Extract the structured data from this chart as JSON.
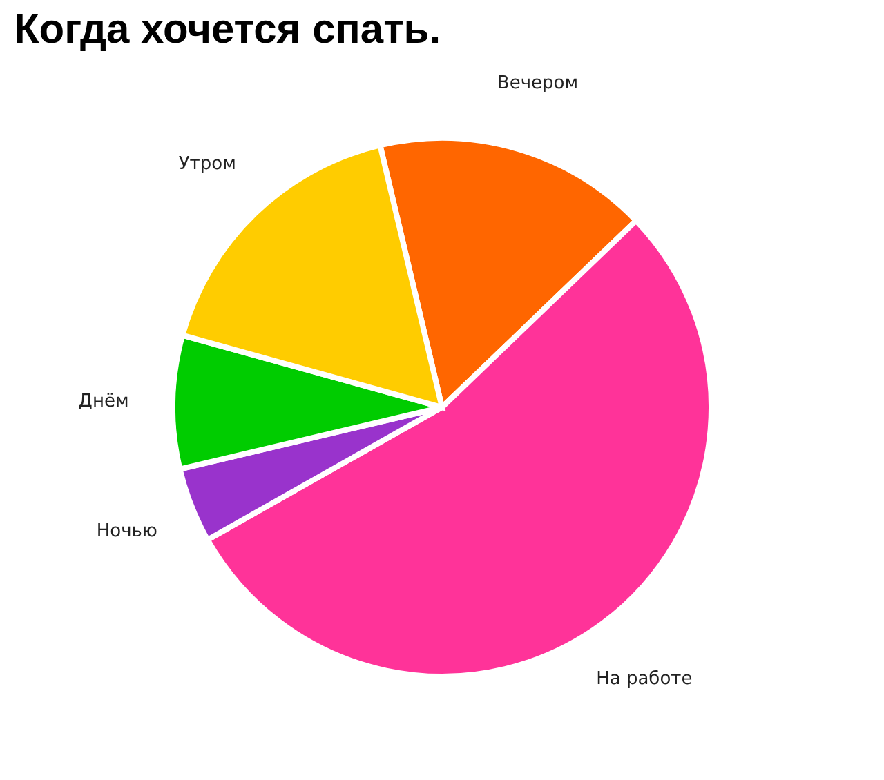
{
  "chart_data": {
    "type": "pie",
    "title": "Когда хочется спать.",
    "categories": [
      "Вечером",
      "На работе",
      "Ночью",
      "Днём",
      "Утром"
    ],
    "values": [
      16.5,
      54,
      4.5,
      8,
      17
    ],
    "colors": [
      "#ff6600",
      "#ff3399",
      "#9933cc",
      "#00cc00",
      "#ffcc00"
    ],
    "legend": false
  }
}
